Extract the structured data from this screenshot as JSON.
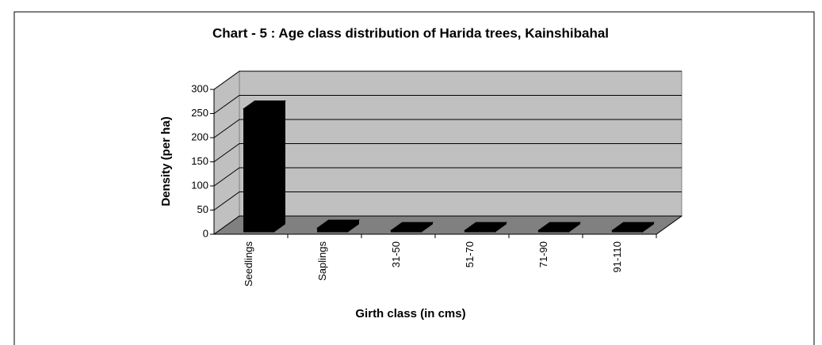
{
  "chart_data": {
    "type": "bar3d",
    "title": "Chart - 5 : Age class distribution of Harida trees, Kainshibahal",
    "x_label": "Girth class (in cms)",
    "y_label": "Density (per ha)",
    "categories": [
      "Seedlings",
      "Saplings",
      "31-50",
      "51-70",
      "71-90",
      "91-110"
    ],
    "values": [
      255,
      8,
      3,
      3,
      3,
      3
    ],
    "color": "#000000",
    "ylim": [
      0,
      300
    ],
    "yticks": [
      0,
      50,
      100,
      150,
      200,
      250,
      300
    ],
    "grid": true
  }
}
